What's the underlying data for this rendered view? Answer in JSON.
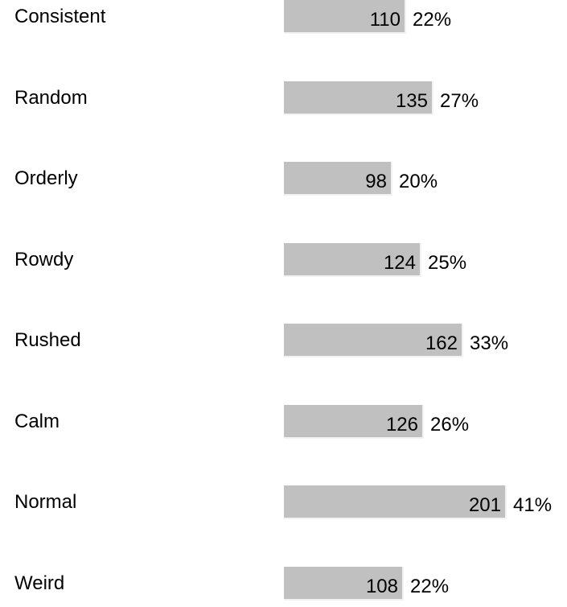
{
  "chart_data": {
    "type": "bar",
    "orientation": "horizontal",
    "categories": [
      "Consistent",
      "Random",
      "Orderly",
      "Rowdy",
      "Rushed",
      "Calm",
      "Normal",
      "Weird"
    ],
    "values": [
      110,
      135,
      98,
      124,
      162,
      126,
      201,
      108
    ],
    "percent_labels": [
      "22%",
      "27%",
      "20%",
      "25%",
      "33%",
      "26%",
      "41%",
      "22%"
    ],
    "title": "",
    "xlabel": "",
    "ylabel": "",
    "grid": false,
    "legend": "none",
    "bar_color": "#c0c0c0"
  }
}
